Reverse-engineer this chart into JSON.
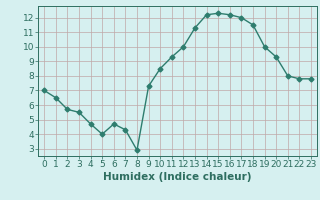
{
  "x": [
    0,
    1,
    2,
    3,
    4,
    5,
    6,
    7,
    8,
    9,
    10,
    11,
    12,
    13,
    14,
    15,
    16,
    17,
    18,
    19,
    20,
    21,
    22,
    23
  ],
  "y": [
    7.0,
    6.5,
    5.7,
    5.5,
    4.7,
    4.0,
    4.7,
    4.3,
    2.9,
    7.3,
    8.5,
    9.3,
    10.0,
    11.3,
    12.2,
    12.3,
    12.2,
    12.0,
    11.5,
    10.0,
    9.3,
    8.0,
    7.8,
    7.8
  ],
  "line_color": "#2e7d6e",
  "bg_color": "#d6f0f0",
  "grid_color": "#c0a8a8",
  "xlabel": "Humidex (Indice chaleur)",
  "ylim": [
    2.5,
    12.8
  ],
  "xlim": [
    -0.5,
    23.5
  ],
  "yticks": [
    3,
    4,
    5,
    6,
    7,
    8,
    9,
    10,
    11,
    12
  ],
  "xticks": [
    0,
    1,
    2,
    3,
    4,
    5,
    6,
    7,
    8,
    9,
    10,
    11,
    12,
    13,
    14,
    15,
    16,
    17,
    18,
    19,
    20,
    21,
    22,
    23
  ],
  "xtick_labels": [
    "0",
    "1",
    "2",
    "3",
    "4",
    "5",
    "6",
    "7",
    "8",
    "9",
    "10",
    "11",
    "12",
    "13",
    "14",
    "15",
    "16",
    "17",
    "18",
    "19",
    "20",
    "21",
    "22",
    "23"
  ],
  "marker": "D",
  "marker_size": 2.5,
  "line_width": 1.0,
  "font_color": "#2e6e60",
  "xlabel_fontsize": 7.5,
  "tick_fontsize": 6.5
}
